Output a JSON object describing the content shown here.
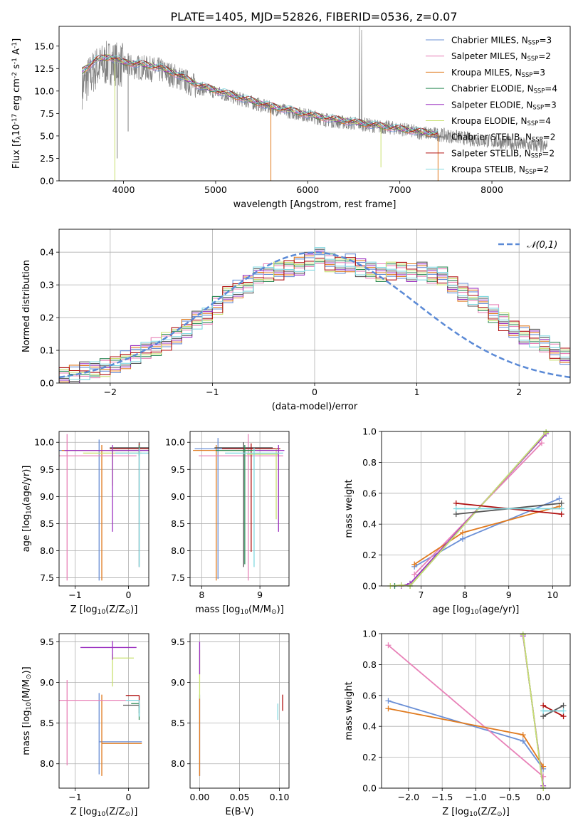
{
  "figure": {
    "title": "PLATE=1405, MJD=52826, FIBERID=0536, z=0.07"
  },
  "series_styles": [
    {
      "name": "Chabrier MILES, N$_{SSP}$=3",
      "color": "#6a8fd6"
    },
    {
      "name": "Salpeter MILES, N$_{SSP}$=2",
      "color": "#e882b8"
    },
    {
      "name": "Kroupa MILES, N$_{SSP}$=3",
      "color": "#e07b20"
    },
    {
      "name": "Chabrier ELODIE, N$_{SSP}$=4",
      "color": "#2e8b57"
    },
    {
      "name": "Salpeter ELODIE, N$_{SSP}$=3",
      "color": "#9b30c0"
    },
    {
      "name": "Kroupa ELODIE, N$_{SSP}$=4",
      "color": "#c8e070"
    },
    {
      "name": "Chabrier STELIB, N$_{SSP}$=2",
      "color": "#555555"
    },
    {
      "name": "Salpeter STELIB, N$_{SSP}$=2",
      "color": "#b01010"
    },
    {
      "name": "Kroupa STELIB, N$_{SSP}$=2",
      "color": "#80d8e0"
    }
  ],
  "data_color": "#808080",
  "normal_color": "#5b8ad6",
  "chart_data": [
    {
      "type": "line",
      "id": "spectrum",
      "xlabel": "wavelength [Angstrom, rest frame]",
      "ylabel": "Flux [f$_\\lambda$10$^{-17}$ erg cm$^{-2}$ s$^{-1}$ A$^{-1}$]",
      "xlim": [
        3300,
        8850
      ],
      "ylim": [
        0,
        17.2
      ],
      "xticks": [
        4000,
        5000,
        6000,
        7000,
        8000
      ],
      "yticks": [
        0.0,
        2.5,
        5.0,
        7.5,
        10.0,
        12.5,
        15.0
      ],
      "grid": false,
      "legend": "upper-right",
      "x": [
        3550,
        3700,
        3850,
        4000,
        4200,
        4400,
        4600,
        4800,
        5000,
        5200,
        5400,
        5600,
        5800,
        6000,
        6200,
        6400,
        6600,
        6800,
        7000,
        7200,
        7400,
        7600,
        7800,
        8000,
        8200,
        8400,
        8600
      ],
      "series": [
        {
          "name": "data",
          "values": [
            10.5,
            12.5,
            13.2,
            12.8,
            12.6,
            12.3,
            11.5,
            10.4,
            9.9,
            9.3,
            8.7,
            8.1,
            7.7,
            7.3,
            6.8,
            6.5,
            6.3,
            6.0,
            5.8,
            5.4,
            5.2,
            4.9,
            4.6,
            4.4,
            4.2,
            4.0,
            3.8
          ]
        },
        {
          "name": "model",
          "values": [
            12.2,
            13.5,
            13.8,
            13.2,
            13.0,
            12.6,
            11.8,
            10.7,
            10.1,
            9.5,
            8.9,
            8.3,
            7.9,
            7.4,
            7.0,
            6.7,
            6.4,
            6.1,
            5.8,
            5.5,
            5.2,
            5.0,
            4.7,
            4.5,
            4.3,
            4.1,
            3.9
          ]
        }
      ],
      "absorption_dips": [
        {
          "x": 3905,
          "y": 0.0
        },
        {
          "x": 5600,
          "y": 0.0
        },
        {
          "x": 7415,
          "y": 0.0
        },
        {
          "x": 6795,
          "y": 1.5
        },
        {
          "x": 3930,
          "y": 2.5
        },
        {
          "x": 4050,
          "y": 5.5
        }
      ],
      "emission_spikes": [
        {
          "x": 6563,
          "y": 17.2
        },
        {
          "x": 6585,
          "y": 16.8
        }
      ]
    },
    {
      "type": "histogram",
      "id": "residuals",
      "xlabel": "(data-model)/error",
      "ylabel": "Normed distribution",
      "xlim": [
        -2.5,
        2.5
      ],
      "ylim": [
        0,
        0.47
      ],
      "xticks": [
        -2,
        -1,
        0,
        1,
        2
      ],
      "yticks": [
        0.0,
        0.1,
        0.2,
        0.3,
        0.4
      ],
      "grid": true,
      "legend": "upper-right",
      "legend_label": "$\\mathcal{N}(0,1)$",
      "bin_width": 0.1,
      "base_profile": [
        0.028,
        0.03,
        0.04,
        0.046,
        0.05,
        0.056,
        0.074,
        0.09,
        0.1,
        0.114,
        0.13,
        0.15,
        0.17,
        0.195,
        0.21,
        0.24,
        0.27,
        0.29,
        0.305,
        0.33,
        0.34,
        0.345,
        0.355,
        0.36,
        0.375,
        0.395,
        0.37,
        0.36,
        0.37,
        0.355,
        0.345,
        0.34,
        0.345,
        0.35,
        0.34,
        0.345,
        0.335,
        0.33,
        0.3,
        0.28,
        0.265,
        0.24,
        0.215,
        0.19,
        0.17,
        0.15,
        0.14,
        0.125,
        0.1,
        0.082,
        0.06
      ],
      "normal": {
        "mean": 0,
        "sigma": 1
      }
    },
    {
      "type": "errorbar",
      "id": "age-vs-Z",
      "xlabel": "Z [log$_{10}$(Z/Z$_\\odot$)]",
      "ylabel": "age  [log$_{10}$(age/yr)]",
      "xlim": [
        -1.3,
        0.38
      ],
      "ylim": [
        7.35,
        10.2
      ],
      "xticks": [
        -1,
        0
      ],
      "yticks": [
        7.5,
        8.0,
        8.5,
        9.0,
        9.5,
        10.0
      ],
      "grid": true,
      "points": [
        {
          "s": 0,
          "x": -0.55,
          "y": 9.85,
          "xerr": [
            0.75,
            0.75
          ],
          "yerr": [
            2.4,
            0.2
          ]
        },
        {
          "s": 2,
          "x": -0.5,
          "y": 9.85,
          "xerr": [
            0.75,
            0.75
          ],
          "yerr": [
            2.4,
            0.1
          ]
        },
        {
          "s": 1,
          "x": -1.15,
          "y": 9.75,
          "xerr": [
            1.3,
            1.3
          ],
          "yerr": [
            2.3,
            0.4
          ]
        },
        {
          "s": 6,
          "x": 0.2,
          "y": 9.9,
          "xerr": [
            0.55,
            0.55
          ],
          "yerr": [
            2.2,
            0.1
          ]
        },
        {
          "s": 7,
          "x": 0.2,
          "y": 9.88,
          "xerr": [
            0.55,
            0.55
          ],
          "yerr": [
            0.1,
            0.1
          ]
        },
        {
          "s": 3,
          "x": 0.2,
          "y": 9.85,
          "xerr": [
            0.55,
            0.55
          ],
          "yerr": [
            0.1,
            0.1
          ]
        },
        {
          "s": 5,
          "x": -0.3,
          "y": 9.8,
          "xerr": [
            0.55,
            0.55
          ],
          "yerr": [
            0.6,
            0.1
          ]
        },
        {
          "s": 4,
          "x": -0.3,
          "y": 9.85,
          "xerr": [
            0.9,
            0.9
          ],
          "yerr": [
            1.5,
            0.1
          ]
        },
        {
          "s": 8,
          "x": 0.2,
          "y": 9.8,
          "xerr": [
            0.45,
            0.45
          ],
          "yerr": [
            2.1,
            0.1
          ]
        }
      ]
    },
    {
      "type": "errorbar",
      "id": "age-vs-mass",
      "xlabel": "mass [log$_{10}$(M/M$_\\odot$)]",
      "ylabel": "",
      "xlim": [
        7.8,
        9.5
      ],
      "ylim": [
        7.35,
        10.2
      ],
      "xticks": [
        8,
        9
      ],
      "yticks": [
        7.5,
        8.0,
        8.5,
        9.0,
        9.5,
        10.0
      ],
      "grid": true,
      "points": [
        {
          "s": 0,
          "x": 8.28,
          "y": 9.88,
          "xerr": [
            0.4,
            0.6
          ],
          "yerr": [
            2.4,
            0.2
          ]
        },
        {
          "s": 2,
          "x": 8.25,
          "y": 9.85,
          "xerr": [
            0.4,
            0.6
          ],
          "yerr": [
            2.4,
            0.1
          ]
        },
        {
          "s": 1,
          "x": 8.8,
          "y": 9.75,
          "xerr": [
            0.85,
            0.6
          ],
          "yerr": [
            2.3,
            0.4
          ]
        },
        {
          "s": 6,
          "x": 8.72,
          "y": 9.9,
          "xerr": [
            0.5,
            0.5
          ],
          "yerr": [
            2.2,
            0.1
          ]
        },
        {
          "s": 7,
          "x": 8.85,
          "y": 9.88,
          "xerr": [
            0.5,
            0.5
          ],
          "yerr": [
            1.9,
            0.1
          ]
        },
        {
          "s": 3,
          "x": 8.74,
          "y": 9.85,
          "xerr": [
            0.5,
            0.5
          ],
          "yerr": [
            2.1,
            0.1
          ]
        },
        {
          "s": 5,
          "x": 9.28,
          "y": 9.78,
          "xerr": [
            0.5,
            0.05
          ],
          "yerr": [
            1.2,
            0.1
          ]
        },
        {
          "s": 4,
          "x": 9.32,
          "y": 9.85,
          "xerr": [
            0.4,
            0.1
          ],
          "yerr": [
            1.5,
            0.1
          ]
        },
        {
          "s": 8,
          "x": 8.9,
          "y": 9.8,
          "xerr": [
            0.5,
            0.5
          ],
          "yerr": [
            2.1,
            0.1
          ]
        }
      ]
    },
    {
      "type": "line",
      "id": "weight-vs-age",
      "xlabel": "age  [log$_{10}$(age/yr)]",
      "ylabel": "mass weight",
      "xlim": [
        6.1,
        10.4
      ],
      "ylim": [
        0,
        1.0
      ],
      "xticks": [
        7,
        8,
        9,
        10
      ],
      "yticks": [
        0.0,
        0.2,
        0.4,
        0.6,
        0.8,
        1.0
      ],
      "grid": true,
      "series": [
        {
          "s": 0,
          "x": [
            6.85,
            7.95,
            10.15
          ],
          "y": [
            0.125,
            0.305,
            0.565
          ]
        },
        {
          "s": 1,
          "x": [
            6.85,
            9.75
          ],
          "y": [
            0.075,
            0.925
          ]
        },
        {
          "s": 2,
          "x": [
            6.85,
            7.95,
            10.15
          ],
          "y": [
            0.14,
            0.345,
            0.515
          ]
        },
        {
          "s": 3,
          "x": [
            6.4,
            6.55,
            6.75,
            9.85
          ],
          "y": [
            0.0,
            0.005,
            0.0,
            0.995
          ]
        },
        {
          "s": 4,
          "x": [
            6.55,
            6.75,
            9.85
          ],
          "y": [
            0.0,
            0.015,
            0.985
          ]
        },
        {
          "s": 5,
          "x": [
            6.3,
            6.55,
            6.75,
            9.85
          ],
          "y": [
            0.0,
            0.005,
            0.0,
            0.995
          ]
        },
        {
          "s": 6,
          "x": [
            7.8,
            10.2
          ],
          "y": [
            0.465,
            0.535
          ]
        },
        {
          "s": 7,
          "x": [
            7.8,
            10.2
          ],
          "y": [
            0.535,
            0.465
          ]
        },
        {
          "s": 8,
          "x": [
            7.8,
            10.2
          ],
          "y": [
            0.5,
            0.5
          ]
        }
      ]
    },
    {
      "type": "errorbar",
      "id": "mass-vs-Z",
      "xlabel": "Z [log$_{10}$(Z/Z$_\\odot$)]",
      "ylabel": "mass [log$_{10}$(M/M$_\\odot$)]",
      "xlim": [
        -1.3,
        0.38
      ],
      "ylim": [
        7.7,
        9.6
      ],
      "xticks": [
        -1,
        0
      ],
      "yticks": [
        8.0,
        8.5,
        9.0,
        9.5
      ],
      "grid": true,
      "points": [
        {
          "s": 0,
          "x": -0.55,
          "y": 8.27,
          "xerr": [
            0.0,
            0.8
          ],
          "yerr": [
            0.4,
            0.6
          ]
        },
        {
          "s": 2,
          "x": -0.5,
          "y": 8.25,
          "xerr": [
            0.0,
            0.75
          ],
          "yerr": [
            0.4,
            0.6
          ]
        },
        {
          "s": 1,
          "x": -1.15,
          "y": 8.78,
          "xerr": [
            0.15,
            1.35
          ],
          "yerr": [
            0.8,
            0.25
          ]
        },
        {
          "s": 6,
          "x": 0.2,
          "y": 8.72,
          "xerr": [
            0.3,
            0.0
          ],
          "yerr": [
            0.1,
            0.0
          ]
        },
        {
          "s": 7,
          "x": 0.2,
          "y": 8.84,
          "xerr": [
            0.25,
            0.0
          ],
          "yerr": [
            0.15,
            0.0
          ]
        },
        {
          "s": 3,
          "x": 0.2,
          "y": 8.74,
          "xerr": [
            0.15,
            0.0
          ],
          "yerr": [
            0.2,
            0.0
          ]
        },
        {
          "s": 5,
          "x": -0.3,
          "y": 9.3,
          "xerr": [
            0.0,
            0.4
          ],
          "yerr": [
            0.35,
            0.05
          ]
        },
        {
          "s": 4,
          "x": -0.3,
          "y": 9.43,
          "xerr": [
            0.6,
            0.45
          ],
          "yerr": [
            0.15,
            0.08
          ]
        },
        {
          "s": 8,
          "x": 0.2,
          "y": 8.78,
          "xerr": [
            0.25,
            0.0
          ],
          "yerr": [
            0.2,
            0.0
          ]
        }
      ]
    },
    {
      "type": "errorbar",
      "id": "mass-vs-ebv",
      "xlabel": "E(B-V)",
      "ylabel": "",
      "xlim": [
        -0.012,
        0.112
      ],
      "ylim": [
        7.7,
        9.6
      ],
      "xticks": [
        0.0,
        0.05,
        0.1
      ],
      "yticks": [
        8.0,
        8.5,
        9.0,
        9.5
      ],
      "grid": true,
      "points": [
        {
          "s": 0,
          "x": 0.0,
          "y": 8.3,
          "xerr": [
            0,
            0
          ],
          "yerr": [
            0.45,
            0.55
          ]
        },
        {
          "s": 2,
          "x": 0.0,
          "y": 8.3,
          "xerr": [
            0,
            0
          ],
          "yerr": [
            0.45,
            0.5
          ]
        },
        {
          "s": 5,
          "x": 0.0,
          "y": 9.1,
          "xerr": [
            0,
            0
          ],
          "yerr": [
            0.3,
            0.3
          ]
        },
        {
          "s": 4,
          "x": 0.0,
          "y": 9.35,
          "xerr": [
            0,
            0
          ],
          "yerr": [
            0.25,
            0.15
          ]
        },
        {
          "s": 8,
          "x": 0.098,
          "y": 8.64,
          "xerr": [
            0,
            0
          ],
          "yerr": [
            0.1,
            0.1
          ]
        },
        {
          "s": 7,
          "x": 0.104,
          "y": 8.75,
          "xerr": [
            0,
            0
          ],
          "yerr": [
            0.1,
            0.1
          ]
        }
      ]
    },
    {
      "type": "line",
      "id": "weight-vs-Z",
      "xlabel": "Z [log$_{10}$(Z/Z$_\\odot$)]",
      "ylabel": "mass weight",
      "xlim": [
        -2.4,
        0.4
      ],
      "ylim": [
        0,
        1.0
      ],
      "xticks": [
        -2.0,
        -1.5,
        -1.0,
        -0.5,
        0.0
      ],
      "yticks": [
        0.0,
        0.2,
        0.4,
        0.6,
        0.8,
        1.0
      ],
      "grid": true,
      "series": [
        {
          "s": 0,
          "x": [
            -2.3,
            -0.3,
            0.0
          ],
          "y": [
            0.565,
            0.305,
            0.125
          ]
        },
        {
          "s": 1,
          "x": [
            -2.3,
            0.0
          ],
          "y": [
            0.925,
            0.075
          ]
        },
        {
          "s": 2,
          "x": [
            -2.3,
            -0.3,
            0.0
          ],
          "y": [
            0.515,
            0.345,
            0.14
          ]
        },
        {
          "s": 3,
          "x": [
            -0.3,
            0.0
          ],
          "y": [
            0.995,
            0.0
          ]
        },
        {
          "s": 4,
          "x": [
            -0.3,
            0.0
          ],
          "y": [
            0.985,
            0.015
          ]
        },
        {
          "s": 5,
          "x": [
            -0.3,
            0.0
          ],
          "y": [
            0.995,
            0.0
          ]
        },
        {
          "s": 6,
          "x": [
            0.0,
            0.3
          ],
          "y": [
            0.465,
            0.535
          ]
        },
        {
          "s": 7,
          "x": [
            0.0,
            0.3
          ],
          "y": [
            0.535,
            0.465
          ]
        },
        {
          "s": 8,
          "x": [
            0.0,
            0.3
          ],
          "y": [
            0.5,
            0.5
          ]
        }
      ]
    }
  ]
}
